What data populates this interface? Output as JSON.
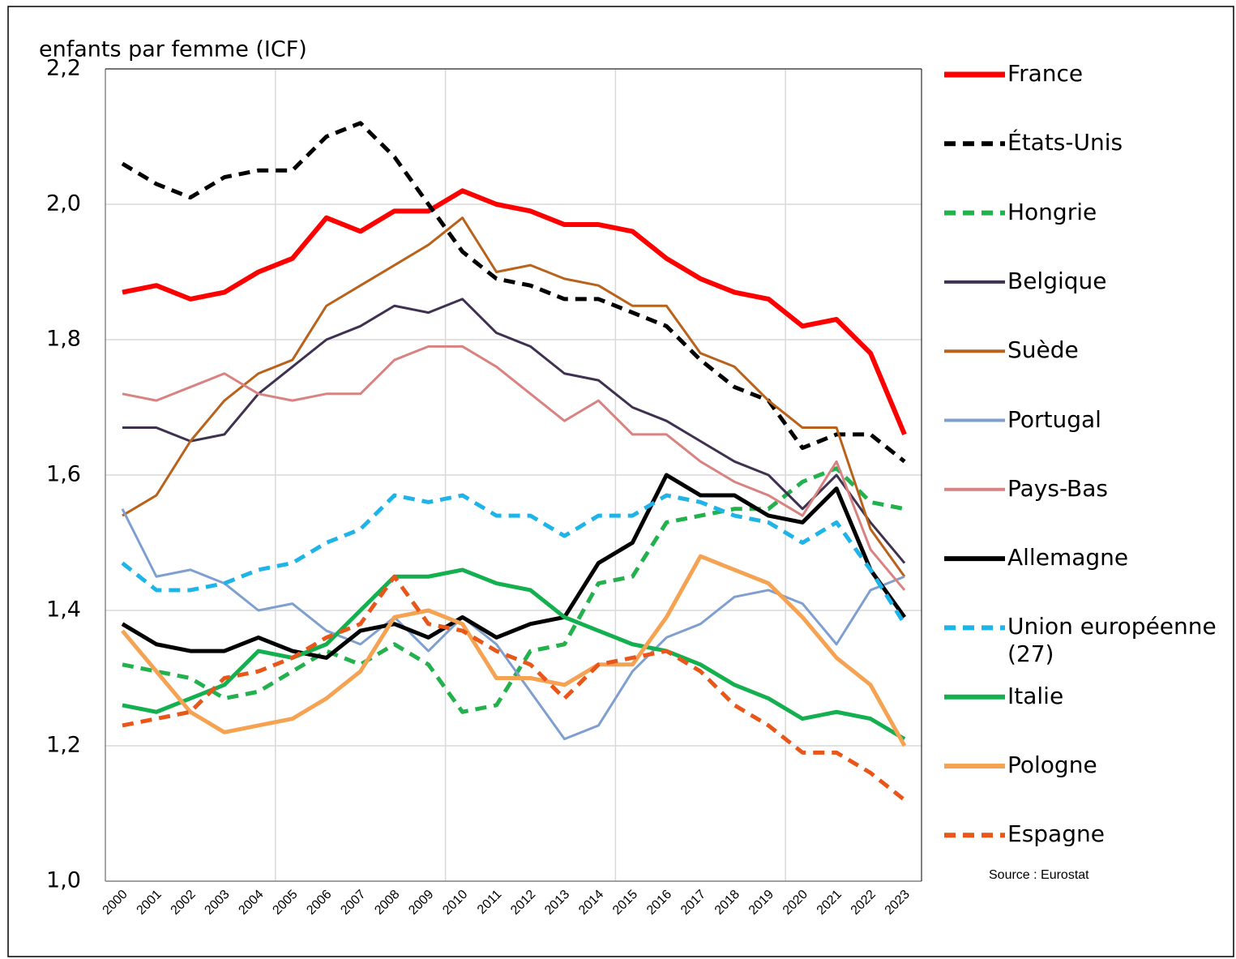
{
  "chart_data": {
    "type": "line",
    "title": "enfants par femme (ICF)",
    "source": "Source : Eurostat",
    "categories": [
      "2000",
      "2001",
      "2002",
      "2003",
      "2004",
      "2005",
      "2006",
      "2007",
      "2008",
      "2009",
      "2010",
      "2011",
      "2012",
      "2013",
      "2014",
      "2015",
      "2016",
      "2017",
      "2018",
      "2019",
      "2020",
      "2021",
      "2022",
      "2023"
    ],
    "ylim": [
      1.0,
      2.2
    ],
    "yticks": [
      {
        "value": 1.0,
        "label": "1,0"
      },
      {
        "value": 1.2,
        "label": "1,2"
      },
      {
        "value": 1.4,
        "label": "1,4"
      },
      {
        "value": 1.6,
        "label": "1,6"
      },
      {
        "value": 1.8,
        "label": "1,8"
      },
      {
        "value": 2.0,
        "label": "2,0"
      },
      {
        "value": 2.2,
        "label": "2,2"
      }
    ],
    "grid": true,
    "legend": "right",
    "series": [
      {
        "name": "France",
        "color": "#ff0000",
        "dash": false,
        "width": 6,
        "values": [
          1.87,
          1.88,
          1.86,
          1.87,
          1.9,
          1.92,
          1.98,
          1.96,
          1.99,
          1.99,
          2.02,
          2.0,
          1.99,
          1.97,
          1.97,
          1.96,
          1.92,
          1.89,
          1.87,
          1.86,
          1.82,
          1.83,
          1.78,
          1.66
        ]
      },
      {
        "name": "États-Unis",
        "color": "#000000",
        "dash": true,
        "width": 5,
        "values": [
          2.06,
          2.03,
          2.01,
          2.04,
          2.05,
          2.05,
          2.1,
          2.12,
          2.07,
          2.0,
          1.93,
          1.89,
          1.88,
          1.86,
          1.86,
          1.84,
          1.82,
          1.77,
          1.73,
          1.71,
          1.64,
          1.66,
          1.66,
          1.62
        ]
      },
      {
        "name": "Hongrie",
        "color": "#22b14c",
        "dash": true,
        "width": 5,
        "values": [
          1.32,
          1.31,
          1.3,
          1.27,
          1.28,
          1.31,
          1.34,
          1.32,
          1.35,
          1.32,
          1.25,
          1.26,
          1.34,
          1.35,
          1.44,
          1.45,
          1.53,
          1.54,
          1.55,
          1.55,
          1.59,
          1.61,
          1.56,
          1.55
        ]
      },
      {
        "name": "Belgique",
        "color": "#3f3150",
        "dash": false,
        "width": 3,
        "values": [
          1.67,
          1.67,
          1.65,
          1.66,
          1.72,
          1.76,
          1.8,
          1.82,
          1.85,
          1.84,
          1.86,
          1.81,
          1.79,
          1.75,
          1.74,
          1.7,
          1.68,
          1.65,
          1.62,
          1.6,
          1.55,
          1.6,
          1.53,
          1.47
        ]
      },
      {
        "name": "Suède",
        "color": "#b8621b",
        "dash": false,
        "width": 3,
        "values": [
          1.54,
          1.57,
          1.65,
          1.71,
          1.75,
          1.77,
          1.85,
          1.88,
          1.91,
          1.94,
          1.98,
          1.9,
          1.91,
          1.89,
          1.88,
          1.85,
          1.85,
          1.78,
          1.76,
          1.71,
          1.67,
          1.67,
          1.52,
          1.45
        ]
      },
      {
        "name": "Portugal",
        "color": "#7f9fd0",
        "dash": false,
        "width": 3,
        "values": [
          1.55,
          1.45,
          1.46,
          1.44,
          1.4,
          1.41,
          1.37,
          1.35,
          1.39,
          1.34,
          1.39,
          1.35,
          1.28,
          1.21,
          1.23,
          1.31,
          1.36,
          1.38,
          1.42,
          1.43,
          1.41,
          1.35,
          1.43,
          1.45
        ]
      },
      {
        "name": "Pays-Bas",
        "color": "#d98282",
        "dash": false,
        "width": 3,
        "values": [
          1.72,
          1.71,
          1.73,
          1.75,
          1.72,
          1.71,
          1.72,
          1.72,
          1.77,
          1.79,
          1.79,
          1.76,
          1.72,
          1.68,
          1.71,
          1.66,
          1.66,
          1.62,
          1.59,
          1.57,
          1.54,
          1.62,
          1.49,
          1.43
        ]
      },
      {
        "name": "Allemagne",
        "color": "#000000",
        "dash": false,
        "width": 5,
        "values": [
          1.38,
          1.35,
          1.34,
          1.34,
          1.36,
          1.34,
          1.33,
          1.37,
          1.38,
          1.36,
          1.39,
          1.36,
          1.38,
          1.39,
          1.47,
          1.5,
          1.6,
          1.57,
          1.57,
          1.54,
          1.53,
          1.58,
          1.46,
          1.39
        ]
      },
      {
        "name": "Union européenne (27)",
        "color": "#1fb4e8",
        "dash": true,
        "width": 5,
        "values": [
          1.47,
          1.43,
          1.43,
          1.44,
          1.46,
          1.47,
          1.5,
          1.52,
          1.57,
          1.56,
          1.57,
          1.54,
          1.54,
          1.51,
          1.54,
          1.54,
          1.57,
          1.56,
          1.54,
          1.53,
          1.5,
          1.53,
          1.46,
          1.38
        ]
      },
      {
        "name": "Italie",
        "color": "#14b050",
        "dash": false,
        "width": 5,
        "values": [
          1.26,
          1.25,
          1.27,
          1.29,
          1.34,
          1.33,
          1.35,
          1.4,
          1.45,
          1.45,
          1.46,
          1.44,
          1.43,
          1.39,
          1.37,
          1.35,
          1.34,
          1.32,
          1.29,
          1.27,
          1.24,
          1.25,
          1.24,
          1.21
        ]
      },
      {
        "name": "Pologne",
        "color": "#f5a352",
        "dash": false,
        "width": 5,
        "values": [
          1.37,
          1.31,
          1.25,
          1.22,
          1.23,
          1.24,
          1.27,
          1.31,
          1.39,
          1.4,
          1.38,
          1.3,
          1.3,
          1.29,
          1.32,
          1.32,
          1.39,
          1.48,
          1.46,
          1.44,
          1.39,
          1.33,
          1.29,
          1.2
        ]
      },
      {
        "name": "Espagne",
        "color": "#e8561a",
        "dash": true,
        "width": 5,
        "values": [
          1.23,
          1.24,
          1.25,
          1.3,
          1.31,
          1.33,
          1.36,
          1.38,
          1.45,
          1.38,
          1.37,
          1.34,
          1.32,
          1.27,
          1.32,
          1.33,
          1.34,
          1.31,
          1.26,
          1.23,
          1.19,
          1.19,
          1.16,
          1.12
        ]
      }
    ]
  }
}
